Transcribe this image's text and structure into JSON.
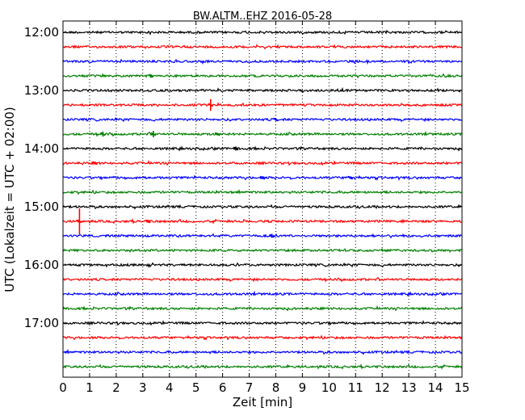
{
  "chart_data": {
    "type": "line",
    "title": "BW.ALTM..EHZ 2016-05-28",
    "xlabel": "Zeit  [min]",
    "ylabel": "UTC (Lokalzeit = UTC + 02:00)",
    "xlim": [
      0,
      15
    ],
    "x_ticks": [
      "0",
      "1",
      "2",
      "3",
      "4",
      "5",
      "6",
      "7",
      "8",
      "9",
      "10",
      "11",
      "12",
      "13",
      "14",
      "15"
    ],
    "y_ticks": [
      "12:00",
      "13:00",
      "14:00",
      "15:00",
      "16:00",
      "17:00"
    ],
    "grid": "vertical dotted",
    "trace_interval_min": 15,
    "colors": [
      "#000000",
      "#ff0000",
      "#0000ff",
      "#008000"
    ],
    "series": [
      {
        "start": "12:00",
        "events": []
      },
      {
        "start": "12:15",
        "events": []
      },
      {
        "start": "12:30",
        "events": []
      },
      {
        "start": "12:45",
        "events": [
          {
            "t": 3.3,
            "amp": 0.15
          }
        ]
      },
      {
        "start": "13:00",
        "events": []
      },
      {
        "start": "13:15",
        "events": [
          {
            "t": 5.55,
            "amp": 0.45
          }
        ]
      },
      {
        "start": "13:30",
        "events": [
          {
            "t": 8.0,
            "amp": 0.1
          }
        ]
      },
      {
        "start": "13:45",
        "events": [
          {
            "t": 1.5,
            "amp": 0.2
          },
          {
            "t": 3.4,
            "amp": 0.25
          },
          {
            "t": 5.8,
            "amp": 0.1
          }
        ]
      },
      {
        "start": "14:00",
        "events": [
          {
            "t": 6.5,
            "amp": 0.15
          }
        ]
      },
      {
        "start": "14:15",
        "events": [
          {
            "t": 1.2,
            "amp": 0.1
          }
        ]
      },
      {
        "start": "14:30",
        "events": [
          {
            "t": 7.5,
            "amp": 0.1
          },
          {
            "t": 10.8,
            "amp": 0.1
          }
        ]
      },
      {
        "start": "14:45",
        "events": []
      },
      {
        "start": "15:00",
        "events": []
      },
      {
        "start": "15:15",
        "events": [
          {
            "t": 0.62,
            "amp": 1.0
          },
          {
            "t": 3.2,
            "amp": 0.1
          }
        ]
      },
      {
        "start": "15:30",
        "events": [
          {
            "t": 7.85,
            "amp": 0.15
          }
        ]
      },
      {
        "start": "15:45",
        "events": []
      },
      {
        "start": "16:00",
        "events": []
      },
      {
        "start": "16:15",
        "events": []
      },
      {
        "start": "16:30",
        "events": []
      },
      {
        "start": "16:45",
        "events": []
      },
      {
        "start": "17:00",
        "events": []
      },
      {
        "start": "17:15",
        "events": []
      },
      {
        "start": "17:30",
        "events": []
      },
      {
        "start": "17:45",
        "events": []
      }
    ]
  }
}
